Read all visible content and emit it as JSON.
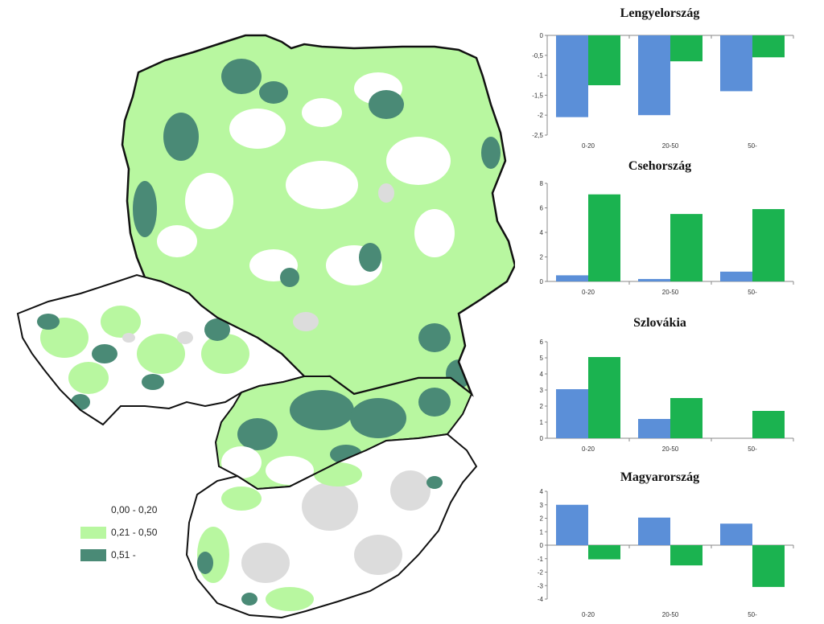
{
  "map": {
    "legend": [
      {
        "label": "0,00 - 0,20",
        "color": "#ffffff"
      },
      {
        "label": "0,21 - 0,50",
        "color": "#b8f7a0"
      },
      {
        "label": "0,51 -",
        "color": "#4a8a76"
      }
    ],
    "colors": {
      "border": "#111111",
      "no_data": "#dcdcdc",
      "low": "#ffffff",
      "mid": "#b8f7a0",
      "high": "#4a8a76"
    }
  },
  "colors": {
    "series_a": "#5b8fd8",
    "series_b": "#1bb350"
  },
  "chart_data": [
    {
      "type": "bar",
      "title": "Lengyelország",
      "categories": [
        "0-20",
        "20-50",
        "50-"
      ],
      "series": [
        {
          "values": [
            -2.05,
            -2.0,
            -1.4
          ]
        },
        {
          "values": [
            -1.25,
            -0.65,
            -0.55
          ]
        }
      ],
      "ylim": [
        -2.5,
        0
      ],
      "yticks": [
        0,
        -0.5,
        -1,
        -1.5,
        -2,
        -2.5
      ],
      "ytick_labels": [
        "0",
        "-0,5",
        "-1",
        "-1,5",
        "-2",
        "-2,5"
      ]
    },
    {
      "type": "bar",
      "title": "Csehország",
      "categories": [
        "0-20",
        "20-50",
        "50-"
      ],
      "series": [
        {
          "values": [
            0.5,
            0.2,
            0.8
          ]
        },
        {
          "values": [
            7.1,
            5.5,
            5.9
          ]
        }
      ],
      "ylim": [
        0,
        8
      ],
      "yticks": [
        0,
        2,
        4,
        6,
        8
      ],
      "ytick_labels": [
        "0",
        "2",
        "4",
        "6",
        "8"
      ]
    },
    {
      "type": "bar",
      "title": "Szlovákia",
      "categories": [
        "0-20",
        "20-50",
        "50-"
      ],
      "series": [
        {
          "values": [
            3.05,
            1.2,
            0
          ]
        },
        {
          "values": [
            5.05,
            2.5,
            1.7
          ]
        }
      ],
      "ylim": [
        0,
        6
      ],
      "yticks": [
        0,
        1,
        2,
        3,
        4,
        5,
        6
      ],
      "ytick_labels": [
        "0",
        "1",
        "2",
        "3",
        "4",
        "5",
        "6"
      ]
    },
    {
      "type": "bar",
      "title": "Magyarország",
      "categories": [
        "0-20",
        "20-50",
        "50-"
      ],
      "series": [
        {
          "values": [
            3.0,
            2.05,
            1.6
          ]
        },
        {
          "values": [
            -1.05,
            -1.5,
            -3.1
          ]
        }
      ],
      "ylim": [
        -4,
        4
      ],
      "yticks": [
        4,
        3,
        2,
        1,
        0,
        -1,
        -2,
        -3,
        -4
      ],
      "ytick_labels": [
        "4",
        "3",
        "2",
        "1",
        "0",
        "-1",
        "-2",
        "-3",
        "-4"
      ]
    }
  ]
}
